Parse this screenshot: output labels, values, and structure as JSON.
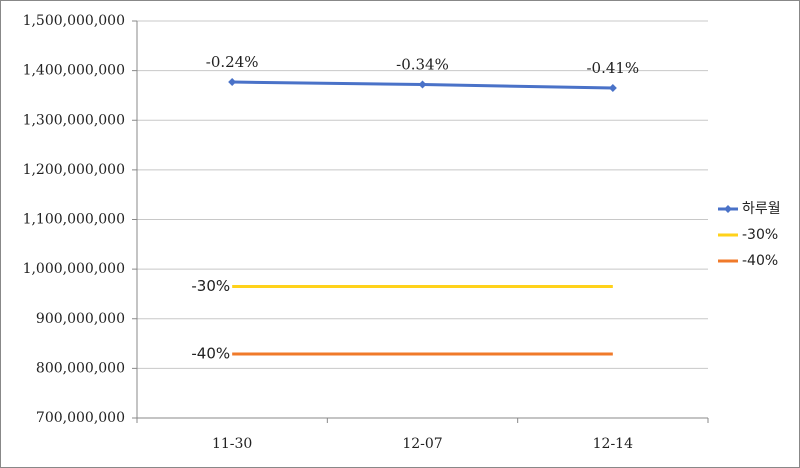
{
  "chart_data": {
    "type": "line",
    "categories": [
      "11-30",
      "12-07",
      "12-14"
    ],
    "series": [
      {
        "name": "하루월",
        "color": "#4a72c8",
        "marker": "diamond",
        "values": [
          1377000000,
          1372000000,
          1365000000
        ],
        "annotations": [
          "-0.24%",
          "-0.34%",
          "-0.41%"
        ],
        "annotation_color": "#1a237e"
      },
      {
        "name": "-30%",
        "color": "#ffd21a",
        "values": [
          965000000,
          965000000,
          965000000
        ],
        "label_color": "#8a7a00"
      },
      {
        "name": "-40%",
        "color": "#f07a2a",
        "values": [
          829000000,
          829000000,
          829000000
        ],
        "label_color": "#e8600a"
      }
    ],
    "ylim": [
      700000000,
      1500000000
    ],
    "yticks": [
      {
        "value": 700000000,
        "label": "700,000,000"
      },
      {
        "value": 800000000,
        "label": "800,000,000"
      },
      {
        "value": 900000000,
        "label": "900,000,000"
      },
      {
        "value": 1000000000,
        "label": "1,000,000,000"
      },
      {
        "value": 1100000000,
        "label": "1,100,000,000"
      },
      {
        "value": 1200000000,
        "label": "1,200,000,000"
      },
      {
        "value": 1300000000,
        "label": "1,300,000,000"
      },
      {
        "value": 1400000000,
        "label": "1,400,000,000"
      },
      {
        "value": 1500000000,
        "label": "1,500,000,000"
      }
    ],
    "grid": true,
    "legend": "right"
  }
}
